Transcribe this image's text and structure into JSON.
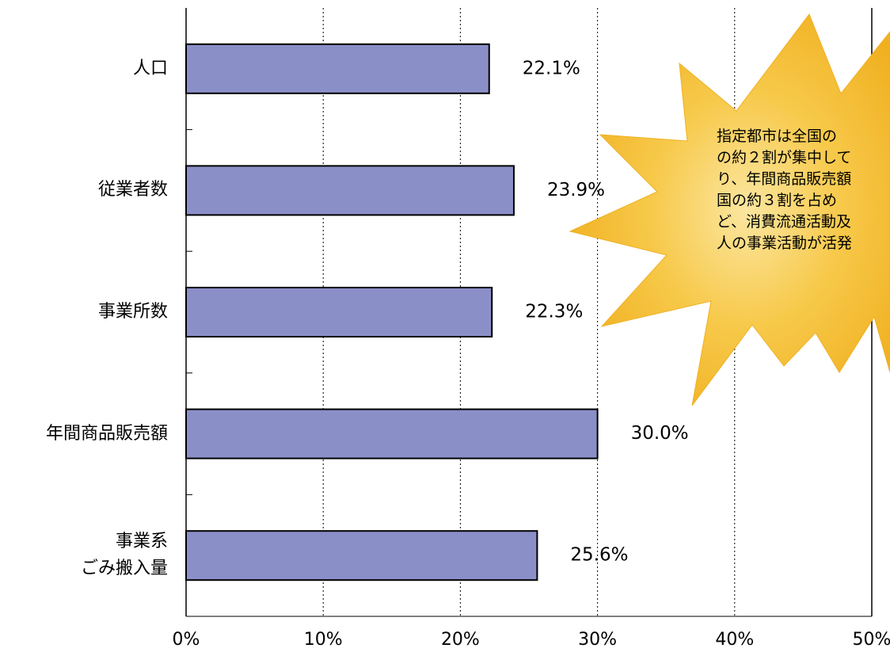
{
  "chart_data": {
    "type": "barh",
    "categories": [
      "人口",
      "従業者数",
      "事業所数",
      "年間商品販売額",
      "事業系\nごみ搬入量"
    ],
    "values": [
      22.1,
      23.9,
      22.3,
      30.0,
      25.6
    ],
    "value_labels": [
      "22.1%",
      "23.9%",
      "22.3%",
      "30.0%",
      "25.6%"
    ],
    "color": "#8b8fc8",
    "xlim": [
      0,
      50
    ],
    "xticks": [
      {
        "value": 0,
        "label": "0%"
      },
      {
        "value": 10,
        "label": "10%"
      },
      {
        "value": 20,
        "label": "20%"
      },
      {
        "value": 30,
        "label": "30%"
      },
      {
        "value": 40,
        "label": "40%"
      },
      {
        "value": 50,
        "label": "50%"
      }
    ],
    "grid": true,
    "annotation": [
      "指定都市は全国の",
      "の約２割が集中して",
      "り、年間商品販売額",
      "国の約３割を占め",
      "ど、消費流通活動及",
      "人の事業活動が活発"
    ]
  }
}
